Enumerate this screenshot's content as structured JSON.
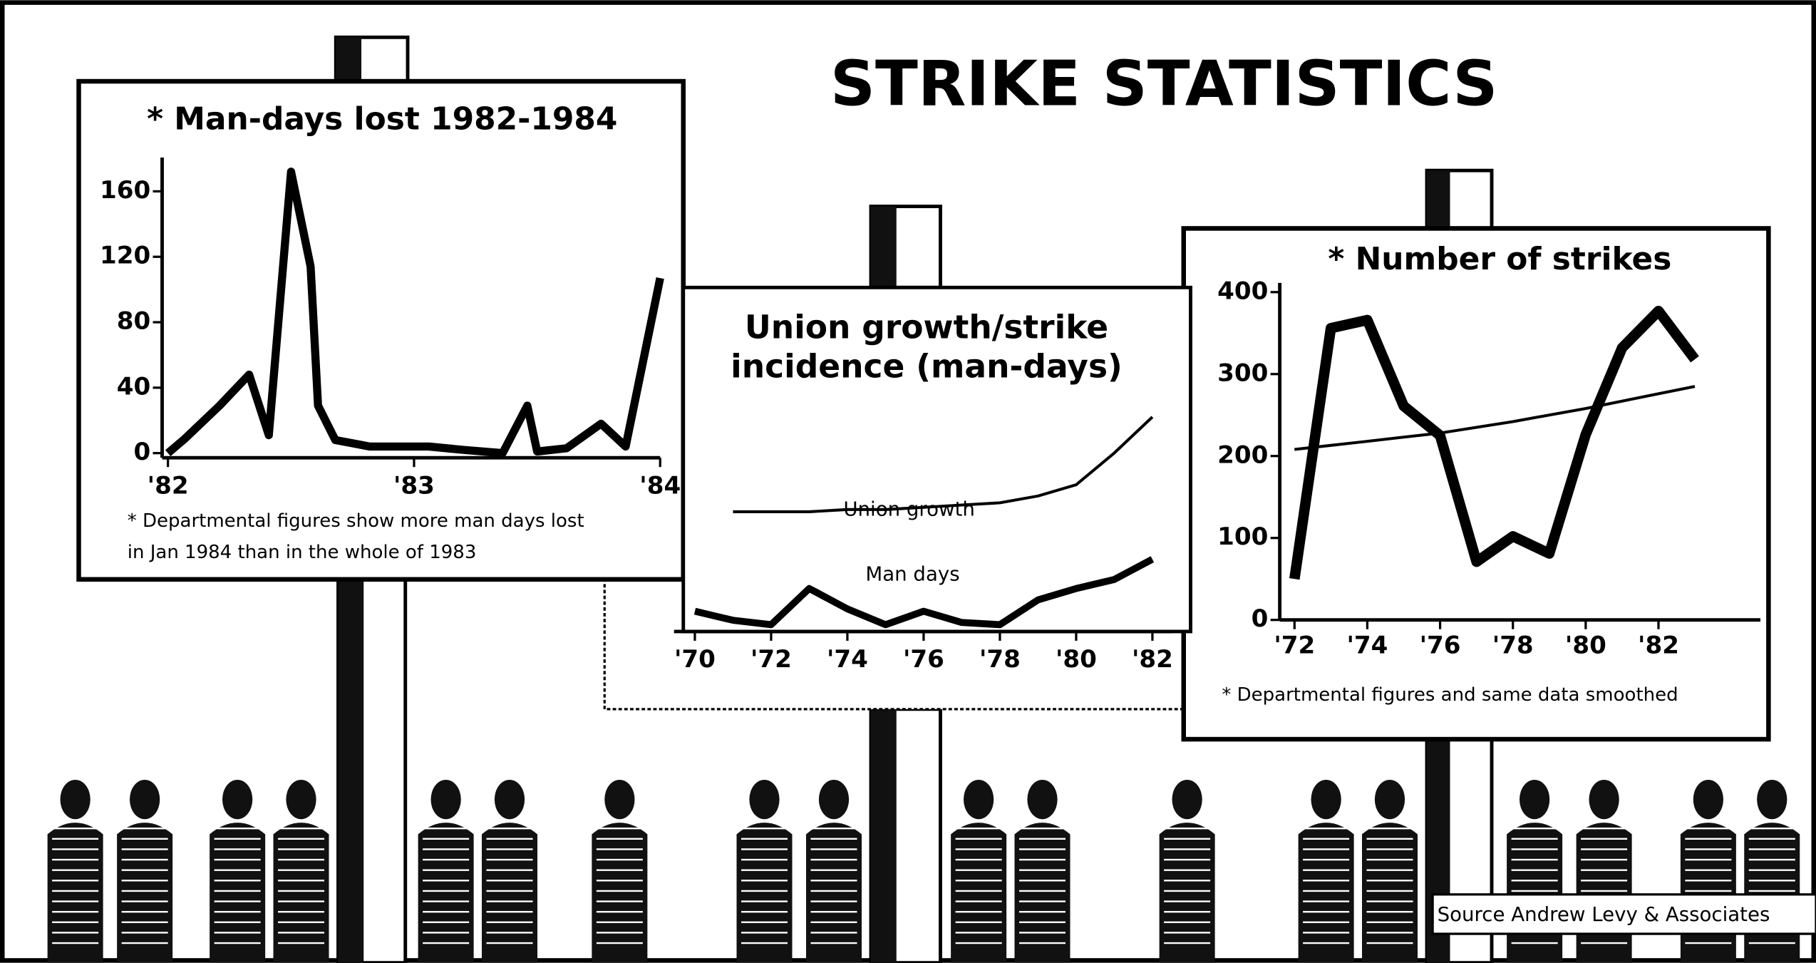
{
  "title": "STRIKE STATISTICS",
  "source": "Source  Andrew Levy & Associates",
  "chart_data": [
    {
      "type": "line",
      "title": "* Man-days lost 1982-1984",
      "x": [
        1982.0,
        1982.07,
        1982.21,
        1982.33,
        1982.41,
        1982.5,
        1982.58,
        1982.61,
        1982.68,
        1982.82,
        1983.06,
        1983.2,
        1983.36,
        1983.46,
        1983.5,
        1983.62,
        1983.76,
        1983.86,
        1984.0
      ],
      "series": [
        {
          "color": "#000000",
          "values": [
            0,
            9,
            29,
            48,
            11,
            172,
            114,
            29,
            8,
            4,
            4,
            2,
            0,
            29,
            1,
            3,
            18,
            4,
            107
          ]
        }
      ],
      "xlim": [
        1982,
        1984
      ],
      "xticks": [
        {
          "value": 1982,
          "label": "'82"
        },
        {
          "value": 1983,
          "label": "'83"
        },
        {
          "value": 1984,
          "label": "'84"
        }
      ],
      "ylim": [
        0,
        175
      ],
      "yticks": [
        0,
        40,
        80,
        120,
        160
      ],
      "note": [
        "* Departmental figures show more man days lost",
        "in Jan 1984 than in the whole of 1983"
      ]
    },
    {
      "type": "line",
      "title": [
        "Union growth/strike",
        "incidence (man-days)"
      ],
      "x": [
        1970,
        1971,
        1972,
        1973,
        1974,
        1975,
        1976,
        1977,
        1978,
        1979,
        1980,
        1981,
        1982
      ],
      "series": [
        {
          "name": "Union growth",
          "color": "#000000",
          "values": [
            null,
            53,
            53,
            53,
            54,
            54,
            55,
            56,
            57,
            60,
            65,
            79,
            95
          ]
        },
        {
          "name": "Man days",
          "color": "#000000",
          "values": [
            9,
            5,
            3,
            19,
            10,
            3,
            9,
            4,
            3,
            14,
            19,
            23,
            32
          ]
        }
      ],
      "xlim": [
        1969.5,
        1982.5
      ],
      "xticks": [
        {
          "value": 1970,
          "label": "'70"
        },
        {
          "value": 1972,
          "label": "'72"
        },
        {
          "value": 1974,
          "label": "'74"
        },
        {
          "value": 1976,
          "label": "'76"
        },
        {
          "value": 1978,
          "label": "'78"
        },
        {
          "value": 1980,
          "label": "'80"
        },
        {
          "value": 1982,
          "label": "'82"
        }
      ],
      "ylim": [
        0,
        100
      ]
    },
    {
      "type": "line",
      "title": "* Number of strikes",
      "x": [
        1972,
        1973,
        1974,
        1975,
        1976,
        1977,
        1978,
        1979,
        1980,
        1981,
        1982,
        1983
      ],
      "series": [
        {
          "color": "#000000",
          "values": [
            50,
            356,
            366,
            261,
            225,
            71,
            102,
            81,
            226,
            332,
            377,
            318
          ]
        },
        {
          "color": "#000000",
          "values": [
            208,
            213,
            218,
            223,
            228,
            235,
            242,
            250,
            258,
            267,
            276,
            285
          ]
        }
      ],
      "xlim": [
        1971.5,
        1984.8
      ],
      "xticks": [
        {
          "value": 1972,
          "label": "'72"
        },
        {
          "value": 1974,
          "label": "'74"
        },
        {
          "value": 1976,
          "label": "'76"
        },
        {
          "value": 1978,
          "label": "'78"
        },
        {
          "value": 1980,
          "label": "'80"
        },
        {
          "value": 1982,
          "label": "'82"
        }
      ],
      "ylim": [
        0,
        400
      ],
      "yticks": [
        0,
        100,
        200,
        300,
        400
      ],
      "note": [
        "* Departmental figures and same data smoothed"
      ]
    }
  ]
}
